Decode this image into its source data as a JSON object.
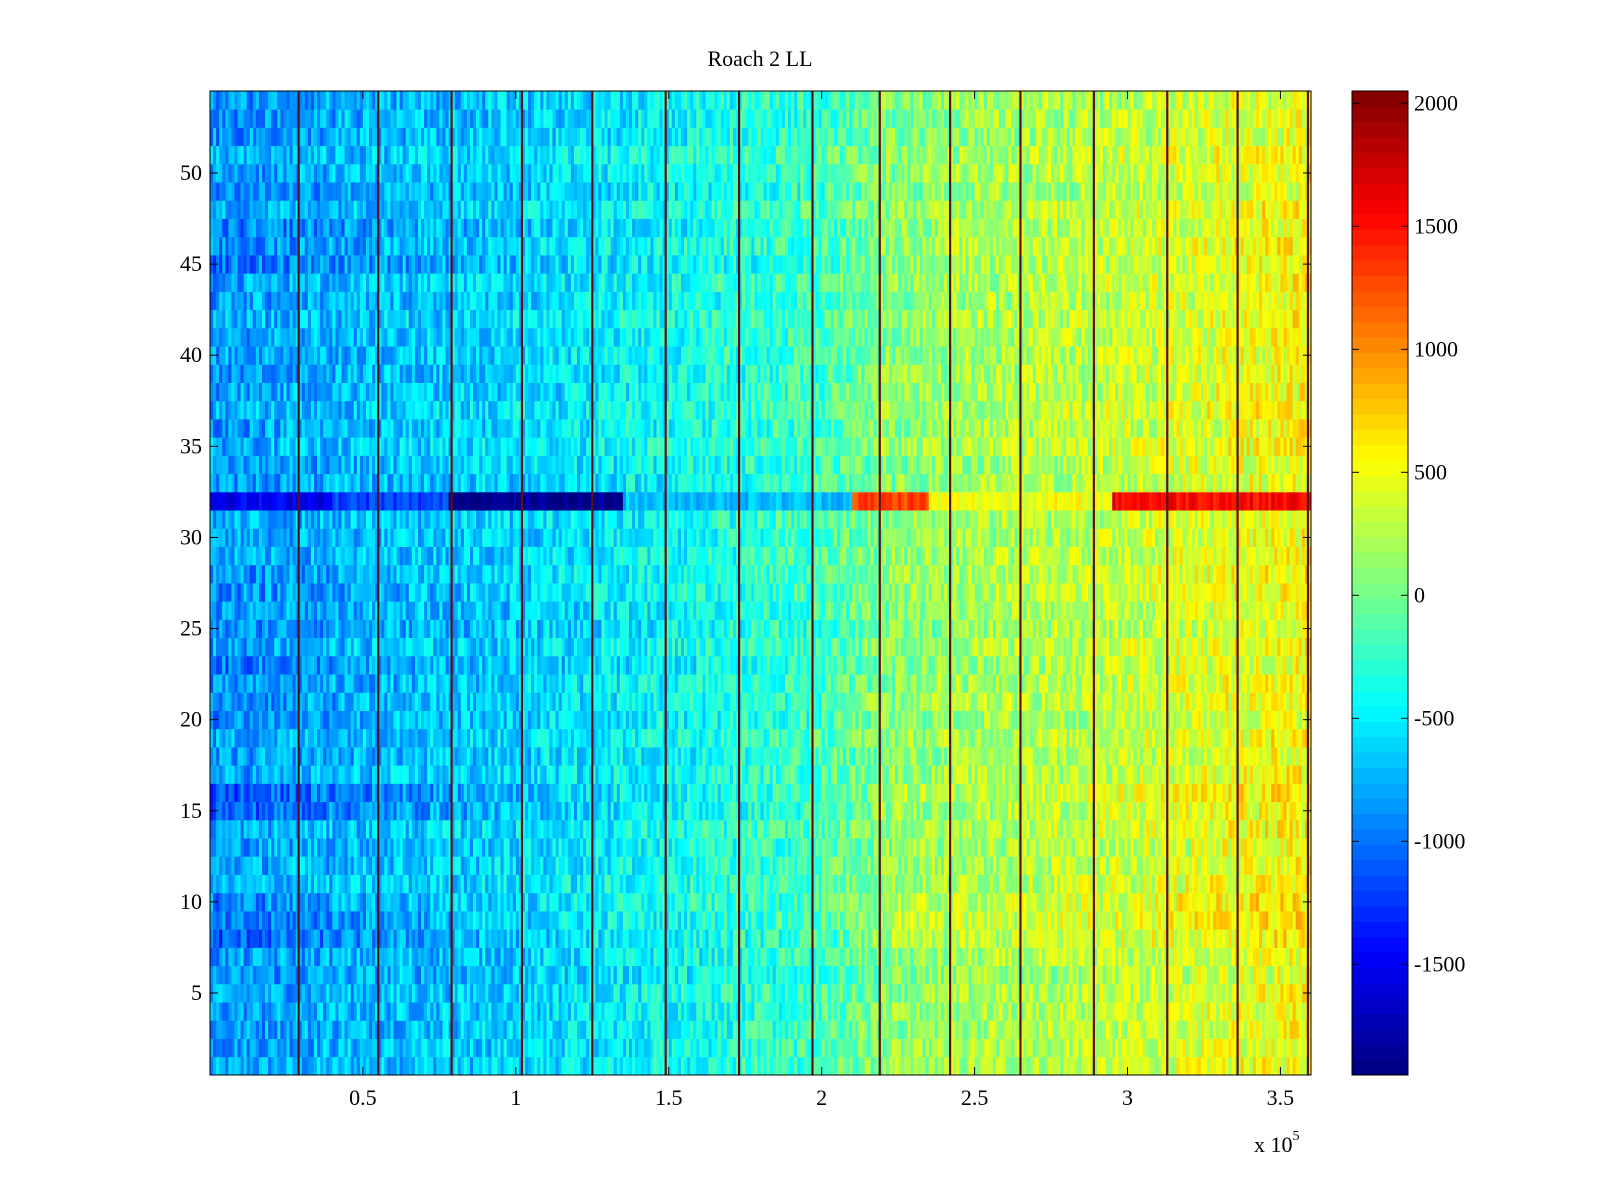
{
  "chart_data": {
    "type": "heatmap",
    "title": "Roach 2 LL",
    "xlabel": "",
    "ylabel": "",
    "x_multiplier_label": "x 10",
    "x_multiplier_exponent": "5",
    "xlim": [
      0,
      3.6
    ],
    "ylim": [
      0.5,
      54.5
    ],
    "x_ticks": [
      0.5,
      1,
      1.5,
      2,
      2.5,
      3,
      3.5
    ],
    "x_tick_labels": [
      "0.5",
      "1",
      "1.5",
      "2",
      "2.5",
      "3",
      "3.5"
    ],
    "y_ticks": [
      5,
      10,
      15,
      20,
      25,
      30,
      35,
      40,
      45,
      50
    ],
    "y_tick_labels": [
      "5",
      "10",
      "15",
      "20",
      "25",
      "30",
      "35",
      "40",
      "45",
      "50"
    ],
    "rows": 54,
    "colormap": "jet",
    "colorbar": {
      "range": [
        -1950,
        2050
      ],
      "ticks": [
        -1500,
        -1000,
        -500,
        0,
        500,
        1000,
        1500,
        2000
      ],
      "tick_labels": [
        "-1500",
        "-1000",
        "-500",
        "0",
        "500",
        "1000",
        "1500",
        "2000"
      ]
    },
    "column_trend": {
      "x": [
        0.0,
        0.3,
        0.6,
        1.0,
        1.5,
        2.0,
        2.2,
        2.5,
        3.0,
        3.3,
        3.6
      ],
      "value": [
        -850,
        -780,
        -700,
        -620,
        -420,
        -200,
        60,
        180,
        300,
        430,
        520
      ]
    },
    "row_offsets": [
      {
        "row": 8,
        "scale": 2.0
      },
      {
        "row": 9,
        "scale": 2.0
      },
      {
        "row": 10,
        "scale": 1.6
      },
      {
        "row": 15,
        "scale": 1.8
      },
      {
        "row": 16,
        "scale": 2.2
      },
      {
        "row": 21,
        "scale": 1.3
      },
      {
        "row": 22,
        "scale": 1.3
      },
      {
        "row": 23,
        "scale": 1.3
      },
      {
        "row": 27,
        "scale": 1.3
      },
      {
        "row": 28,
        "scale": 1.4
      },
      {
        "row": 45,
        "scale": 1.5
      },
      {
        "row": 46,
        "scale": 1.4
      },
      {
        "row": 47,
        "scale": 1.4
      }
    ],
    "anomaly_row": {
      "row": 32,
      "segments": [
        {
          "x0": 0.0,
          "x1": 0.4,
          "value": -1500
        },
        {
          "x0": 0.4,
          "x1": 0.78,
          "value": -1200
        },
        {
          "x0": 0.78,
          "x1": 1.35,
          "value": -1900
        },
        {
          "x0": 1.35,
          "x1": 2.1,
          "value": -700
        },
        {
          "x0": 2.1,
          "x1": 2.35,
          "value": 1300
        },
        {
          "x0": 2.35,
          "x1": 2.95,
          "value": 500
        },
        {
          "x0": 2.95,
          "x1": 3.6,
          "value": 1550
        }
      ]
    },
    "vertical_lines_x": [
      0.29,
      0.55,
      0.79,
      1.02,
      1.25,
      1.49,
      1.73,
      1.97,
      2.19,
      2.42,
      2.65,
      2.89,
      3.13,
      3.36,
      3.59
    ]
  }
}
